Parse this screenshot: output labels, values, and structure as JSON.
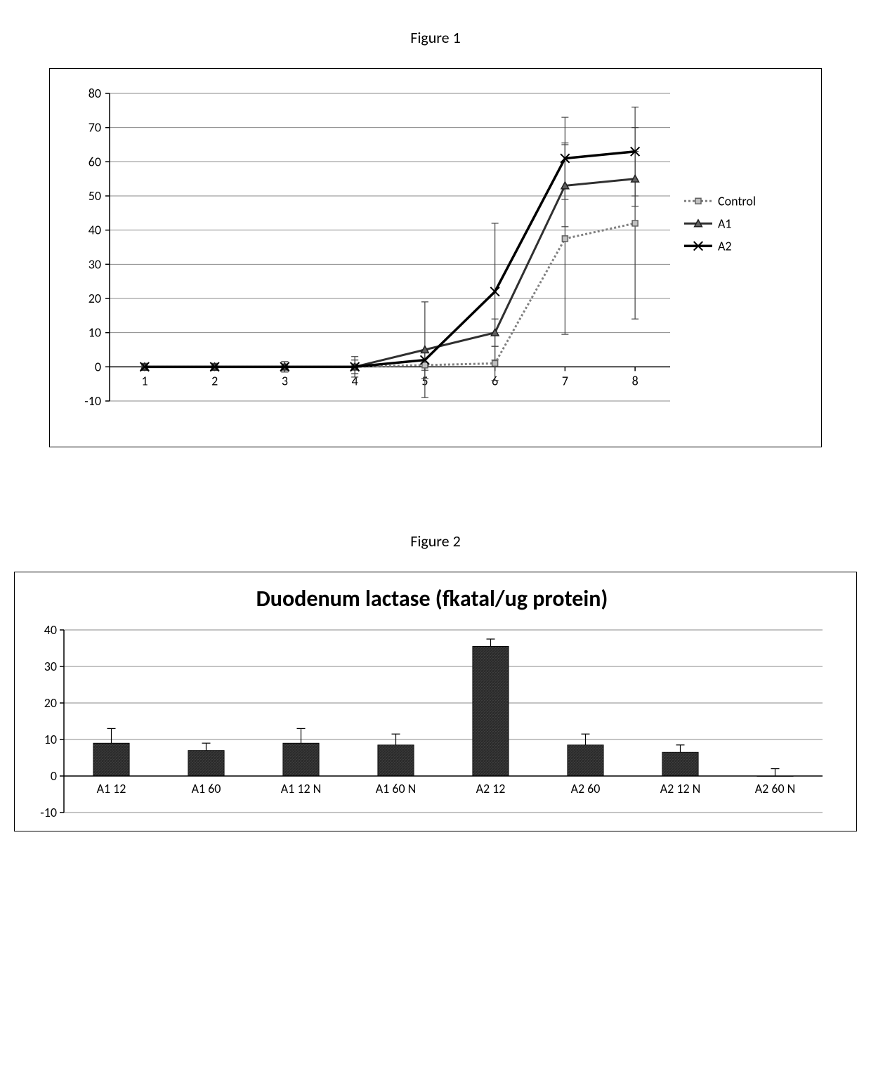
{
  "figure1": {
    "label": "Figure 1",
    "type": "line",
    "xlim": [
      1,
      8
    ],
    "ylim": [
      -10,
      80
    ],
    "xtick_labels": [
      "1",
      "2",
      "3",
      "4",
      "5",
      "6",
      "7",
      "8"
    ],
    "yticks": [
      -10,
      0,
      10,
      20,
      30,
      40,
      50,
      60,
      70,
      80
    ],
    "grid_color": "#888888",
    "axis_color": "#000000",
    "tick_fontsize": 18,
    "background_color": "#ffffff",
    "series": [
      {
        "name": "Control",
        "marker": "square",
        "line_color": "#808080",
        "line_width": 3,
        "line_dash": "3,3",
        "marker_size": 8,
        "marker_fill": "#c0c0c0",
        "marker_stroke": "#606060",
        "y": [
          0,
          0,
          0,
          0,
          0.5,
          1,
          37.5,
          42
        ],
        "err": [
          1,
          1,
          1.5,
          3,
          4,
          5,
          28,
          28
        ]
      },
      {
        "name": "A1",
        "marker": "triangle",
        "line_color": "#303030",
        "line_width": 3,
        "line_dash": null,
        "marker_size": 9,
        "marker_fill": "#606060",
        "marker_stroke": "#202020",
        "y": [
          0,
          0,
          0,
          0,
          5,
          10,
          53,
          55
        ],
        "err": [
          1,
          1,
          1.5,
          2,
          14,
          4,
          12,
          8
        ]
      },
      {
        "name": "A2",
        "marker": "x",
        "line_color": "#000000",
        "line_width": 3.5,
        "line_dash": null,
        "marker_size": 9,
        "marker_fill": "none",
        "marker_stroke": "#000000",
        "y": [
          0,
          0,
          0,
          0,
          2,
          22,
          61,
          63
        ],
        "err": [
          1,
          1,
          1.5,
          2,
          3,
          20,
          12,
          13
        ]
      }
    ],
    "legend_position": "right"
  },
  "figure2": {
    "label": "Figure 2",
    "title": "Duodenum lactase (fkatal/ug protein)",
    "type": "bar",
    "categories": [
      "A1 12",
      "A1 60",
      "A1 12 N",
      "A1 60 N",
      "A2 12",
      "A2 60",
      "A2 12 N",
      "A2 60 N"
    ],
    "values": [
      9,
      7,
      9,
      8.5,
      35.5,
      8.5,
      6.5,
      0
    ],
    "err": [
      4,
      2,
      4,
      3,
      2,
      3,
      2,
      2
    ],
    "bar_color": "#2a2a2a",
    "bar_texture": "noise",
    "bar_width": 0.38,
    "ylim": [
      -10,
      40
    ],
    "yticks": [
      -10,
      0,
      10,
      20,
      30,
      40
    ],
    "tick_fontsize": 18,
    "axis_color": "#000000",
    "grid_color": "#888888",
    "background_color": "#ffffff",
    "title_fontsize": 32,
    "title_weight": "bold"
  }
}
